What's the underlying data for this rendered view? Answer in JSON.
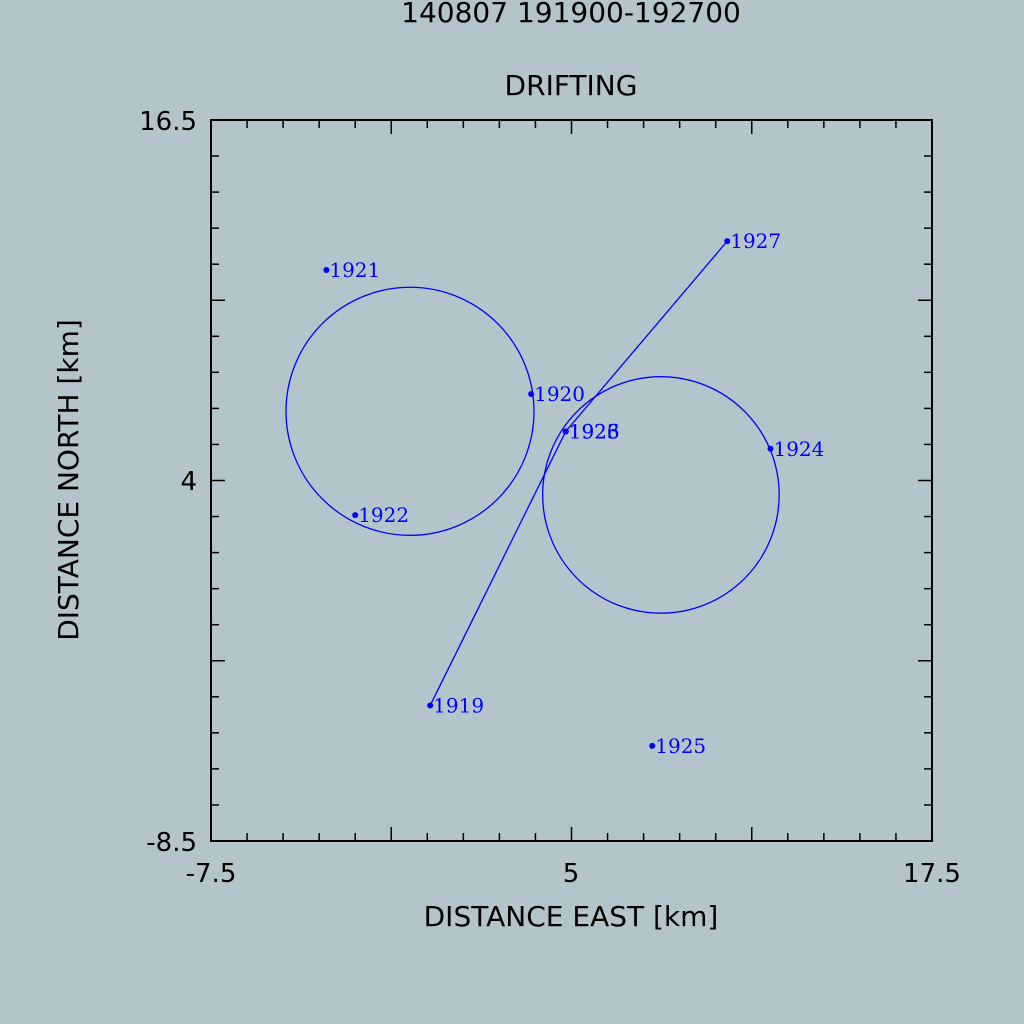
{
  "chart_data": {
    "type": "scatter",
    "title": "140807 191900-192700",
    "subtitle": "DRIFTING",
    "xlabel": "DISTANCE EAST [km]",
    "ylabel": "DISTANCE NORTH [km]",
    "xlim": [
      -7.5,
      17.5
    ],
    "ylim": [
      -8.5,
      16.5
    ],
    "xticks": [
      "-7.5",
      "5",
      "17.5"
    ],
    "yticks": [
      "16.5",
      "4",
      "-8.5"
    ],
    "grid": false,
    "color": "#0000ff",
    "points": [
      {
        "label": "1919",
        "x": 0.1,
        "y": -3.8
      },
      {
        "label": "1920",
        "x": 3.6,
        "y": 7.0
      },
      {
        "label": "1921",
        "x": -3.5,
        "y": 11.3
      },
      {
        "label": "1922",
        "x": -2.5,
        "y": 2.8
      },
      {
        "label": "1923",
        "x": 4.8,
        "y": 5.7
      },
      {
        "label": "1924",
        "x": 11.9,
        "y": 5.1
      },
      {
        "label": "1925",
        "x": 7.8,
        "y": -5.2
      },
      {
        "label": "1926",
        "x": 4.8,
        "y": 5.7
      },
      {
        "label": "1927",
        "x": 10.4,
        "y": 12.3
      }
    ],
    "circles": [
      {
        "cx": -0.6,
        "cy": 6.4,
        "r": 4.3
      },
      {
        "cx": 8.1,
        "cy": 3.5,
        "r": 4.1
      }
    ],
    "track": [
      [
        "1919",
        "1923"
      ],
      [
        "1923",
        "1927"
      ]
    ]
  }
}
